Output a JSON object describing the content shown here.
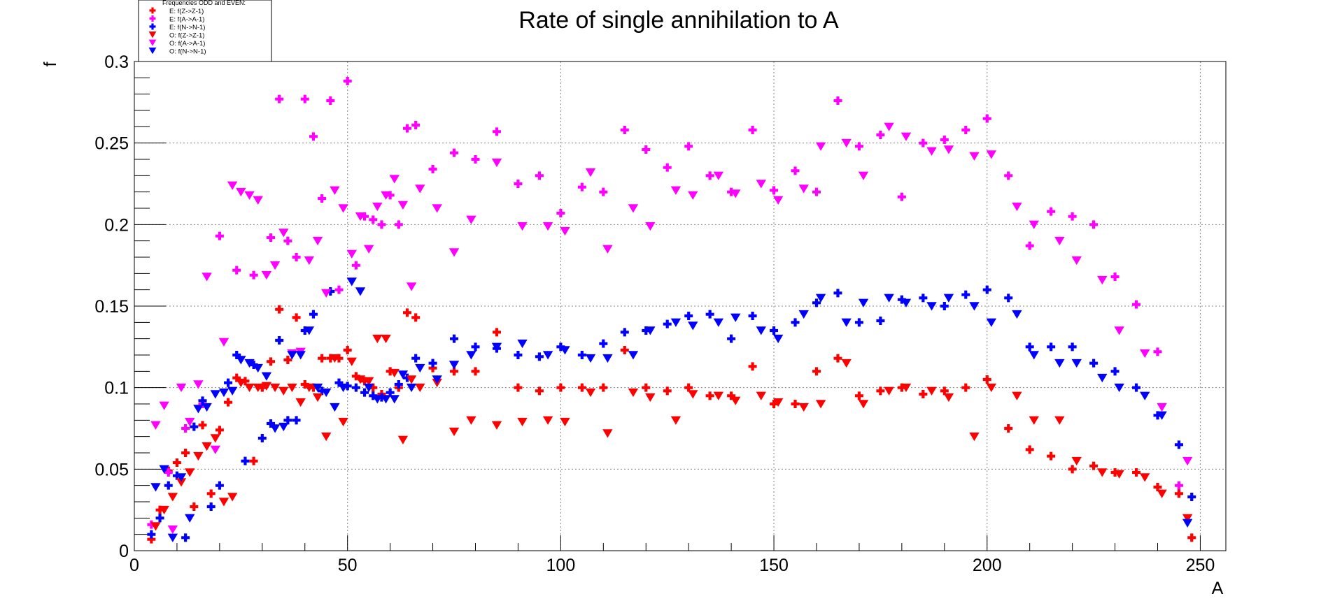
{
  "chart_data": {
    "type": "scatter",
    "title": "Rate of single annihilation to A",
    "xlabel": "A",
    "ylabel": "f",
    "xlim": [
      0,
      256
    ],
    "ylim": [
      0,
      0.3
    ],
    "x_ticks": [
      0,
      50,
      100,
      150,
      200,
      250
    ],
    "x_tick_labels": [
      "0",
      "50",
      "100",
      "150",
      "200",
      "250"
    ],
    "y_ticks": [
      0,
      0.05,
      0.1,
      0.15,
      0.2,
      0.25,
      0.3
    ],
    "y_tick_labels": [
      "0",
      "0.05",
      "0.1",
      "0.15",
      "0.2",
      "0.25",
      "0.3"
    ],
    "grid": true,
    "legend_position": "top-left",
    "legend_title": "Frequencies ODD and EVEN:",
    "series": [
      {
        "name": "E: f(Z->Z-1)",
        "color": "#ff0000",
        "marker": "plus",
        "x": [
          4,
          6,
          8,
          10,
          12,
          14,
          16,
          18,
          20,
          22,
          24,
          26,
          28,
          30,
          32,
          34,
          36,
          38,
          40,
          42,
          44,
          46,
          48,
          50,
          52,
          54,
          56,
          58,
          60,
          62,
          64,
          66,
          70,
          75,
          80,
          85,
          90,
          95,
          100,
          105,
          110,
          115,
          120,
          125,
          130,
          135,
          140,
          145,
          150,
          155,
          160,
          165,
          170,
          175,
          180,
          185,
          190,
          195,
          200,
          205,
          210,
          215,
          220,
          225,
          230,
          235,
          240,
          245,
          248
        ],
        "y": [
          0.007,
          0.025,
          0.049,
          0.054,
          0.06,
          0.027,
          0.077,
          0.035,
          0.074,
          0.091,
          0.106,
          0.104,
          0.055,
          0.1,
          0.116,
          0.148,
          0.117,
          0.143,
          0.102,
          0.1,
          0.118,
          0.118,
          0.118,
          0.123,
          0.107,
          0.104,
          0.1,
          0.096,
          0.11,
          0.1,
          0.146,
          0.143,
          0.112,
          0.11,
          0.11,
          0.134,
          0.1,
          0.098,
          0.1,
          0.1,
          0.1,
          0.123,
          0.1,
          0.098,
          0.1,
          0.095,
          0.095,
          0.113,
          0.09,
          0.09,
          0.11,
          0.118,
          0.095,
          0.098,
          0.1,
          0.096,
          0.098,
          0.1,
          0.105,
          0.075,
          0.062,
          0.058,
          0.05,
          0.052,
          0.048,
          0.048,
          0.039,
          0.035,
          0.008
        ]
      },
      {
        "name": "E: f(A->A-1)",
        "color": "#ff00ff",
        "marker": "plus",
        "x": [
          4,
          8,
          12,
          16,
          20,
          24,
          28,
          32,
          34,
          36,
          38,
          40,
          42,
          44,
          46,
          48,
          50,
          52,
          54,
          56,
          58,
          60,
          62,
          64,
          66,
          70,
          75,
          80,
          85,
          90,
          95,
          100,
          105,
          110,
          115,
          120,
          125,
          130,
          135,
          140,
          145,
          150,
          155,
          160,
          165,
          170,
          175,
          180,
          185,
          190,
          195,
          200,
          205,
          210,
          215,
          220,
          225,
          230,
          235,
          240,
          245
        ],
        "y": [
          0.016,
          0.048,
          0.075,
          0.09,
          0.193,
          0.172,
          0.169,
          0.192,
          0.277,
          0.19,
          0.18,
          0.277,
          0.254,
          0.216,
          0.276,
          0.16,
          0.288,
          0.175,
          0.205,
          0.203,
          0.2,
          0.218,
          0.2,
          0.259,
          0.261,
          0.234,
          0.244,
          0.24,
          0.257,
          0.225,
          0.23,
          0.207,
          0.223,
          0.22,
          0.258,
          0.246,
          0.235,
          0.248,
          0.23,
          0.22,
          0.258,
          0.221,
          0.233,
          0.22,
          0.276,
          0.248,
          0.255,
          0.217,
          0.25,
          0.252,
          0.258,
          0.265,
          0.23,
          0.187,
          0.208,
          0.205,
          0.2,
          0.168,
          0.151,
          0.122,
          0.04
        ]
      },
      {
        "name": "E: f(N->N-1)",
        "color": "#0000ff",
        "marker": "plus",
        "x": [
          4,
          6,
          8,
          10,
          12,
          14,
          16,
          18,
          20,
          22,
          24,
          26,
          28,
          30,
          32,
          34,
          36,
          38,
          40,
          42,
          44,
          46,
          48,
          50,
          52,
          54,
          56,
          58,
          60,
          62,
          64,
          66,
          70,
          75,
          80,
          85,
          90,
          95,
          100,
          105,
          110,
          115,
          120,
          125,
          130,
          135,
          140,
          145,
          150,
          155,
          160,
          165,
          170,
          175,
          180,
          185,
          190,
          195,
          200,
          205,
          210,
          215,
          220,
          225,
          230,
          235,
          240,
          245,
          248
        ],
        "y": [
          0.01,
          0.02,
          0.04,
          0.046,
          0.008,
          0.076,
          0.092,
          0.027,
          0.04,
          0.103,
          0.12,
          0.055,
          0.114,
          0.069,
          0.078,
          0.129,
          0.08,
          0.08,
          0.135,
          0.145,
          0.098,
          0.159,
          0.103,
          0.101,
          0.1,
          0.097,
          0.095,
          0.094,
          0.097,
          0.102,
          0.106,
          0.118,
          0.115,
          0.13,
          0.125,
          0.124,
          0.12,
          0.119,
          0.125,
          0.12,
          0.127,
          0.134,
          0.135,
          0.139,
          0.144,
          0.145,
          0.13,
          0.144,
          0.135,
          0.14,
          0.152,
          0.158,
          0.14,
          0.141,
          0.154,
          0.155,
          0.15,
          0.157,
          0.16,
          0.155,
          0.125,
          0.125,
          0.125,
          0.115,
          0.11,
          0.1,
          0.083,
          0.065,
          0.033
        ]
      },
      {
        "name": "O: f(Z->Z-1)",
        "color": "#ff0000",
        "marker": "triangle-down",
        "x": [
          5,
          7,
          9,
          11,
          13,
          15,
          17,
          19,
          21,
          23,
          25,
          27,
          29,
          31,
          33,
          35,
          37,
          39,
          41,
          43,
          45,
          47,
          49,
          51,
          53,
          55,
          57,
          59,
          61,
          63,
          65,
          67,
          71,
          75,
          79,
          85,
          91,
          97,
          101,
          107,
          111,
          117,
          121,
          127,
          131,
          137,
          141,
          147,
          151,
          157,
          161,
          167,
          171,
          177,
          181,
          187,
          191,
          197,
          201,
          207,
          211,
          217,
          221,
          227,
          231,
          237,
          241,
          247
        ],
        "y": [
          0.015,
          0.025,
          0.033,
          0.042,
          0.048,
          0.058,
          0.064,
          0.069,
          0.03,
          0.033,
          0.103,
          0.1,
          0.1,
          0.101,
          0.1,
          0.098,
          0.1,
          0.091,
          0.1,
          0.094,
          0.07,
          0.118,
          0.079,
          0.116,
          0.105,
          0.104,
          0.13,
          0.13,
          0.109,
          0.068,
          0.105,
          0.1,
          0.103,
          0.073,
          0.08,
          0.077,
          0.079,
          0.08,
          0.079,
          0.097,
          0.072,
          0.097,
          0.094,
          0.08,
          0.096,
          0.095,
          0.092,
          0.095,
          0.091,
          0.088,
          0.09,
          0.115,
          0.09,
          0.098,
          0.1,
          0.098,
          0.094,
          0.07,
          0.1,
          0.095,
          0.08,
          0.08,
          0.055,
          0.048,
          0.047,
          0.045,
          0.035,
          0.02
        ]
      },
      {
        "name": "O: f(A->A-1)",
        "color": "#ff00ff",
        "marker": "triangle-down",
        "x": [
          5,
          7,
          9,
          11,
          13,
          15,
          17,
          19,
          21,
          23,
          25,
          27,
          29,
          31,
          33,
          35,
          37,
          39,
          41,
          43,
          45,
          47,
          49,
          51,
          53,
          55,
          57,
          59,
          61,
          63,
          65,
          67,
          71,
          75,
          79,
          85,
          91,
          97,
          101,
          107,
          111,
          117,
          121,
          127,
          131,
          137,
          141,
          147,
          151,
          157,
          161,
          167,
          171,
          177,
          181,
          187,
          191,
          197,
          201,
          207,
          211,
          217,
          221,
          227,
          231,
          237,
          241,
          247
        ],
        "y": [
          0.077,
          0.089,
          0.013,
          0.1,
          0.079,
          0.102,
          0.168,
          0.062,
          0.128,
          0.224,
          0.22,
          0.218,
          0.215,
          0.169,
          0.175,
          0.195,
          0.121,
          0.122,
          0.178,
          0.19,
          0.158,
          0.221,
          0.21,
          0.182,
          0.205,
          0.185,
          0.211,
          0.218,
          0.228,
          0.212,
          0.162,
          0.222,
          0.21,
          0.183,
          0.203,
          0.238,
          0.199,
          0.199,
          0.196,
          0.232,
          0.185,
          0.21,
          0.199,
          0.221,
          0.218,
          0.23,
          0.219,
          0.225,
          0.215,
          0.222,
          0.248,
          0.25,
          0.23,
          0.26,
          0.254,
          0.245,
          0.246,
          0.242,
          0.243,
          0.211,
          0.2,
          0.19,
          0.178,
          0.166,
          0.135,
          0.121,
          0.088,
          0.055
        ]
      },
      {
        "name": "O: f(N->N-1)",
        "color": "#0000ff",
        "marker": "triangle-down",
        "x": [
          5,
          7,
          9,
          11,
          13,
          15,
          17,
          19,
          21,
          23,
          25,
          27,
          29,
          31,
          33,
          35,
          37,
          39,
          41,
          43,
          45,
          47,
          49,
          51,
          53,
          55,
          57,
          59,
          61,
          63,
          65,
          67,
          71,
          75,
          79,
          85,
          91,
          97,
          101,
          107,
          111,
          117,
          121,
          127,
          131,
          137,
          141,
          147,
          151,
          157,
          161,
          167,
          171,
          177,
          181,
          187,
          191,
          197,
          201,
          207,
          211,
          217,
          221,
          227,
          231,
          237,
          241,
          247
        ],
        "y": [
          0.039,
          0.05,
          0.008,
          0.045,
          0.02,
          0.087,
          0.088,
          0.096,
          0.097,
          0.098,
          0.117,
          0.115,
          0.112,
          0.107,
          0.075,
          0.076,
          0.12,
          0.12,
          0.135,
          0.1,
          0.097,
          0.088,
          0.1,
          0.165,
          0.159,
          0.1,
          0.093,
          0.093,
          0.093,
          0.108,
          0.1,
          0.112,
          0.105,
          0.114,
          0.12,
          0.125,
          0.127,
          0.12,
          0.123,
          0.118,
          0.118,
          0.12,
          0.135,
          0.14,
          0.138,
          0.14,
          0.143,
          0.135,
          0.13,
          0.145,
          0.155,
          0.14,
          0.152,
          0.155,
          0.152,
          0.15,
          0.155,
          0.15,
          0.14,
          0.145,
          0.12,
          0.115,
          0.115,
          0.106,
          0.1,
          0.095,
          0.083,
          0.017
        ]
      }
    ]
  }
}
